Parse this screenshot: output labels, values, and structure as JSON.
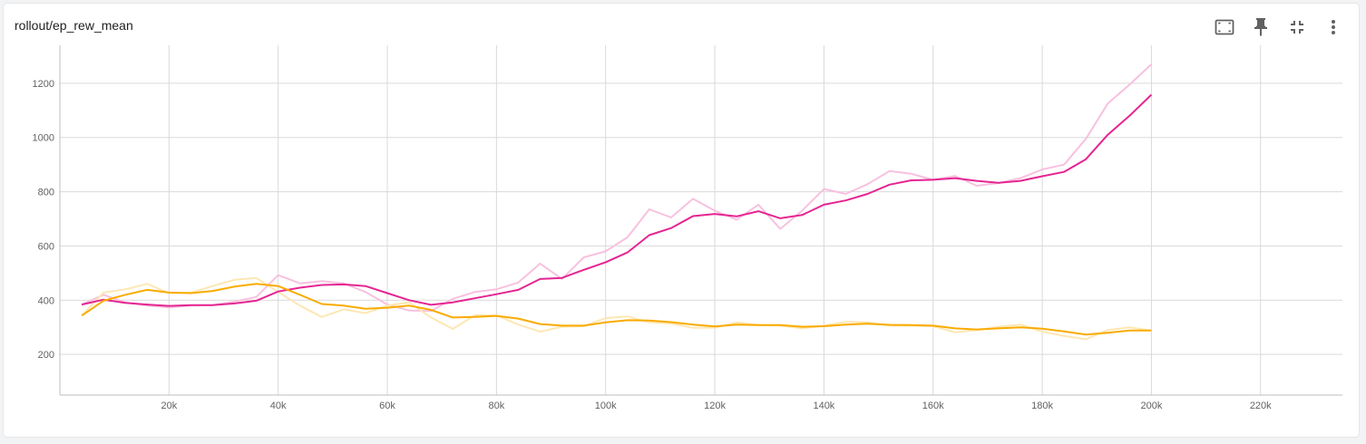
{
  "card": {
    "title": "rollout/ep_rew_mean",
    "toolbar": [
      {
        "icon": "fit-to-data-icon"
      },
      {
        "icon": "pin-icon"
      },
      {
        "icon": "collapse-icon"
      },
      {
        "icon": "more-vert-icon"
      }
    ]
  },
  "chart_data": {
    "type": "line",
    "title": "rollout/ep_rew_mean",
    "xlabel": "",
    "ylabel": "",
    "xlim": [
      0,
      235000
    ],
    "ylim": [
      50,
      1340
    ],
    "xticks": [
      20000,
      40000,
      60000,
      80000,
      100000,
      120000,
      140000,
      160000,
      180000,
      200000,
      220000
    ],
    "xtick_labels": [
      "20k",
      "40k",
      "60k",
      "80k",
      "100k",
      "120k",
      "140k",
      "160k",
      "180k",
      "200k",
      "220k"
    ],
    "yticks": [
      200,
      400,
      600,
      800,
      1000,
      1200
    ],
    "ytick_labels": [
      "200",
      "400",
      "600",
      "800",
      "1000",
      "1200"
    ],
    "grid": true,
    "series": [
      {
        "color": "#e52592",
        "raw_color": "#f7c1df",
        "x": [
          4000,
          8000,
          12000,
          16000,
          20000,
          24000,
          28000,
          32000,
          36000,
          40000,
          44000,
          48000,
          52000,
          56000,
          60000,
          64000,
          68000,
          72000,
          76000,
          80000,
          84000,
          88000,
          92000,
          96000,
          100000,
          104000,
          108000,
          112000,
          116000,
          120000,
          124000,
          128000,
          132000,
          136000,
          140000,
          144000,
          148000,
          152000,
          156000,
          160000,
          164000,
          168000,
          172000,
          176000,
          180000,
          184000,
          188000,
          192000,
          196000,
          200000
        ],
        "smoothed": [
          384,
          402,
          390,
          384,
          379,
          382,
          382,
          388,
          398,
          432,
          446,
          456,
          458,
          452,
          426,
          400,
          383,
          392,
          407,
          422,
          438,
          478,
          482,
          512,
          540,
          576,
          640,
          666,
          710,
          718,
          709,
          728,
          702,
          714,
          752,
          768,
          792,
          826,
          842,
          844,
          850,
          840,
          833,
          840,
          857,
          873,
          920,
          1010,
          1080,
          1158
        ],
        "raw": [
          384,
          420,
          392,
          380,
          373,
          380,
          382,
          395,
          412,
          492,
          462,
          470,
          462,
          430,
          384,
          362,
          360,
          405,
          430,
          440,
          465,
          535,
          478,
          558,
          580,
          632,
          735,
          705,
          774,
          730,
          697,
          752,
          663,
          730,
          810,
          792,
          828,
          876,
          866,
          844,
          858,
          822,
          832,
          850,
          882,
          900,
          995,
          1125,
          1195,
          1270
        ]
      },
      {
        "color": "#f9ab00",
        "raw_color": "#fde7b3",
        "x": [
          4000,
          8000,
          12000,
          16000,
          20000,
          24000,
          28000,
          32000,
          36000,
          40000,
          44000,
          48000,
          52000,
          56000,
          60000,
          64000,
          68000,
          72000,
          76000,
          80000,
          84000,
          88000,
          92000,
          96000,
          100000,
          104000,
          108000,
          112000,
          116000,
          120000,
          124000,
          128000,
          132000,
          136000,
          140000,
          144000,
          148000,
          152000,
          156000,
          160000,
          164000,
          168000,
          172000,
          176000,
          180000,
          184000,
          188000,
          192000,
          196000,
          200000
        ],
        "smoothed": [
          343,
          398,
          420,
          438,
          428,
          426,
          434,
          450,
          460,
          452,
          420,
          386,
          380,
          368,
          372,
          380,
          364,
          336,
          338,
          342,
          332,
          312,
          306,
          306,
          318,
          326,
          325,
          319,
          310,
          303,
          310,
          308,
          308,
          302,
          304,
          310,
          313,
          309,
          308,
          306,
          296,
          292,
          296,
          300,
          295,
          285,
          273,
          280,
          288,
          288
        ],
        "raw": [
          343,
          428,
          440,
          460,
          426,
          428,
          452,
          475,
          482,
          430,
          380,
          338,
          366,
          352,
          380,
          392,
          336,
          294,
          344,
          344,
          310,
          284,
          302,
          304,
          334,
          340,
          318,
          314,
          298,
          298,
          318,
          308,
          306,
          296,
          306,
          320,
          318,
          306,
          306,
          304,
          282,
          290,
          302,
          310,
          284,
          268,
          256,
          290,
          300,
          288
        ]
      }
    ]
  }
}
